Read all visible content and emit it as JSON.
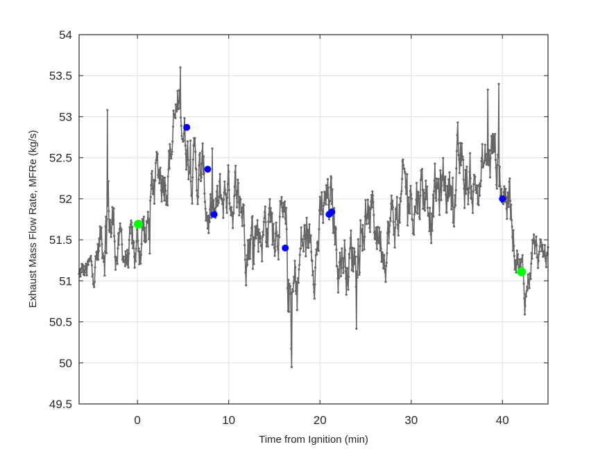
{
  "chart_data": {
    "type": "line",
    "title": "",
    "xlabel": "Time from Ignition (min)",
    "ylabel": "Exhaust Mass Flow Rate, MFRe (kg/s)",
    "xlim": [
      -6.4,
      45
    ],
    "ylim": [
      49.5,
      54
    ],
    "xticks": [
      0,
      10,
      20,
      30,
      40
    ],
    "xtick_labels": [
      "0",
      "10",
      "20",
      "30",
      "40"
    ],
    "yticks": [
      49.5,
      50,
      50.5,
      51,
      51.5,
      52,
      52.5,
      53,
      53.5,
      54
    ],
    "ytick_labels": [
      "49.5",
      "50",
      "50.5",
      "51",
      "51.5",
      "52",
      "52.5",
      "53",
      "53.5",
      "54"
    ],
    "grid": true,
    "legend": null,
    "series": [
      {
        "name": "MFRe trace",
        "color": "#666666",
        "marker": "dot",
        "sampling_interval_min": 0.05,
        "note": "dense noisy signal; envelope approximated by trend anchors (t, mean, amplitude)",
        "trend_anchors": [
          [
            -6.4,
            51.05,
            0.25
          ],
          [
            -5,
            51.1,
            0.3
          ],
          [
            -4,
            51.5,
            0.5
          ],
          [
            -3.3,
            51.9,
            0.9
          ],
          [
            -2,
            51.4,
            0.4
          ],
          [
            -1,
            51.3,
            0.4
          ],
          [
            0,
            51.3,
            0.6
          ],
          [
            0.5,
            51.7,
            0.6
          ],
          [
            1,
            51.5,
            0.6
          ],
          [
            2,
            52.2,
            0.5
          ],
          [
            3,
            52.5,
            0.6
          ],
          [
            4,
            52.8,
            0.6
          ],
          [
            4.7,
            53.1,
            0.5
          ],
          [
            5.5,
            52.7,
            0.5
          ],
          [
            7,
            52.2,
            0.6
          ],
          [
            8.5,
            51.6,
            0.6
          ],
          [
            10,
            52.2,
            0.5
          ],
          [
            11,
            52.0,
            0.6
          ],
          [
            12.5,
            51.6,
            0.6
          ],
          [
            14,
            51.7,
            0.6
          ],
          [
            15.5,
            51.9,
            0.5
          ],
          [
            16.5,
            50.9,
            0.9
          ],
          [
            17,
            50.6,
            0.7
          ],
          [
            18,
            51.4,
            0.6
          ],
          [
            19.5,
            51.5,
            0.5
          ],
          [
            21,
            51.9,
            0.6
          ],
          [
            22,
            51.4,
            0.5
          ],
          [
            23.5,
            51.3,
            0.6
          ],
          [
            25,
            51.8,
            0.6
          ],
          [
            27,
            51.6,
            0.5
          ],
          [
            28,
            51.7,
            0.6
          ],
          [
            29.5,
            52.0,
            0.6
          ],
          [
            31,
            52.2,
            0.6
          ],
          [
            33,
            52.0,
            0.6
          ],
          [
            34.5,
            52.3,
            0.6
          ],
          [
            36,
            52.2,
            0.6
          ],
          [
            37.5,
            52.2,
            0.5
          ],
          [
            39,
            52.6,
            0.6
          ],
          [
            40.2,
            52.2,
            0.5
          ],
          [
            41,
            51.9,
            0.5
          ],
          [
            41.8,
            51.3,
            0.4
          ],
          [
            42.5,
            50.8,
            0.4
          ],
          [
            43.3,
            51.4,
            0.3
          ],
          [
            44.2,
            51.2,
            0.3
          ],
          [
            45,
            51.3,
            0.3
          ]
        ],
        "extremes": {
          "max": [
            4.7,
            53.6
          ],
          "min": [
            16.9,
            49.95
          ]
        }
      }
    ],
    "highlight_points": [
      {
        "group": "green",
        "color": "#00ff00",
        "x": 0.1,
        "y": 51.69
      },
      {
        "group": "blue",
        "color": "#0000ff",
        "x": 5.4,
        "y": 52.87
      },
      {
        "group": "blue",
        "color": "#0000ff",
        "x": 7.7,
        "y": 52.36
      },
      {
        "group": "blue",
        "color": "#0000ff",
        "x": 8.4,
        "y": 51.81
      },
      {
        "group": "blue",
        "color": "#0000ff",
        "x": 16.2,
        "y": 51.4
      },
      {
        "group": "blue",
        "color": "#0000ff",
        "x": 21.0,
        "y": 51.81
      },
      {
        "group": "blue",
        "color": "#0000ff",
        "x": 21.3,
        "y": 51.84
      },
      {
        "group": "blue",
        "color": "#0000ff",
        "x": 40.0,
        "y": 52.0
      },
      {
        "group": "green",
        "color": "#00ff00",
        "x": 42.1,
        "y": 51.11
      }
    ]
  },
  "colors": {
    "trace": "#666666",
    "grid": "#dfdfdf",
    "axis": "#262626",
    "background": "#ffffff"
  }
}
